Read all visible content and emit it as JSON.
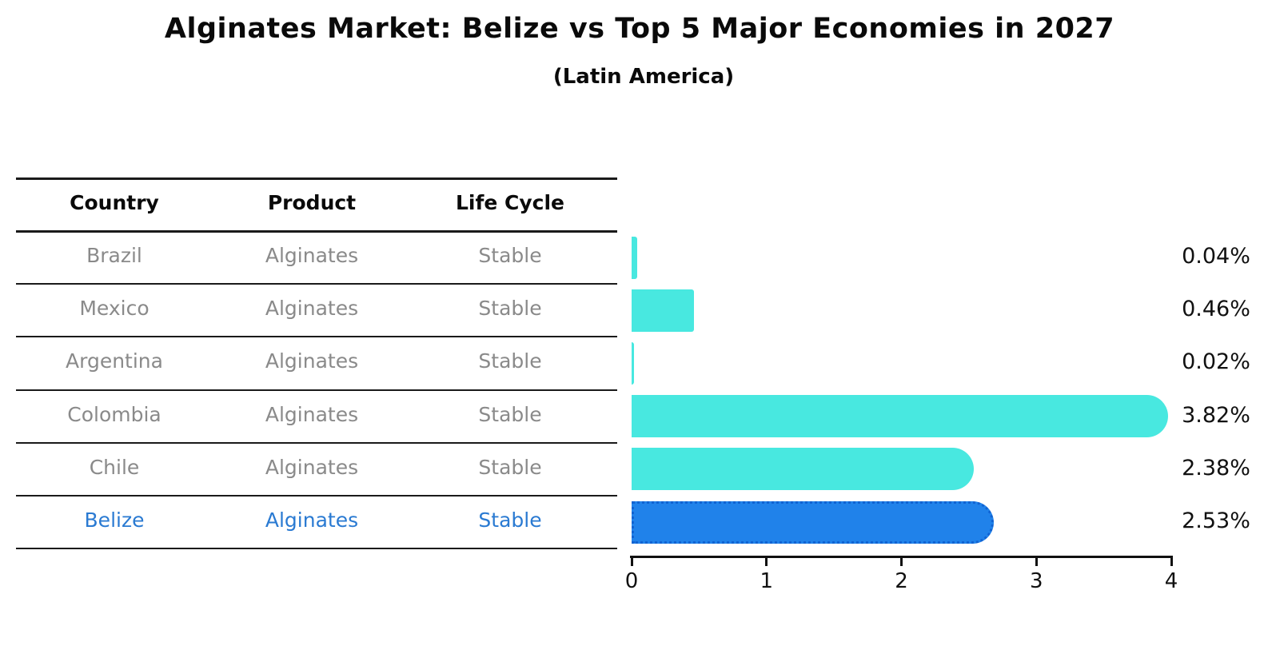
{
  "title": "Alginates Market: Belize vs Top 5 Major Economies in 2027",
  "subtitle": "(Latin America)",
  "table": {
    "headers": [
      "Country",
      "Product",
      "Life Cycle"
    ],
    "rows": [
      {
        "country": "Brazil",
        "product": "Alginates",
        "life_cycle": "Stable",
        "highlight": false
      },
      {
        "country": "Mexico",
        "product": "Alginates",
        "life_cycle": "Stable",
        "highlight": false
      },
      {
        "country": "Argentina",
        "product": "Alginates",
        "life_cycle": "Stable",
        "highlight": false
      },
      {
        "country": "Colombia",
        "product": "Alginates",
        "life_cycle": "Stable",
        "highlight": false
      },
      {
        "country": "Chile",
        "product": "Alginates",
        "life_cycle": "Stable",
        "highlight": false
      },
      {
        "country": "Belize",
        "product": "Alginates",
        "life_cycle": "Stable",
        "highlight": true
      }
    ]
  },
  "chart_data": {
    "type": "bar",
    "orientation": "horizontal",
    "title": "Alginates Market: Belize vs Top 5 Major Economies in 2027",
    "subtitle": "(Latin America)",
    "categories": [
      "Brazil",
      "Mexico",
      "Argentina",
      "Colombia",
      "Chile",
      "Belize"
    ],
    "values": [
      0.04,
      0.46,
      0.02,
      3.82,
      2.38,
      2.53
    ],
    "value_labels": [
      "0.04%",
      "0.46%",
      "0.02%",
      "3.82%",
      "2.38%",
      "2.53%"
    ],
    "xlim": [
      0,
      4
    ],
    "x_tick_labels": [
      "0",
      "1",
      "2",
      "3",
      "4"
    ],
    "grid": false,
    "legend": "none",
    "highlight_index": 5,
    "bar_color": "#48E8E0",
    "highlight_color": "#2082EA",
    "highlight_border_color": "#1163D2"
  },
  "colors": {
    "text": "#0a0a0a",
    "muted_text": "#8a8a8a",
    "highlight_text": "#2a7ad2",
    "line": "#1a1a1a"
  }
}
